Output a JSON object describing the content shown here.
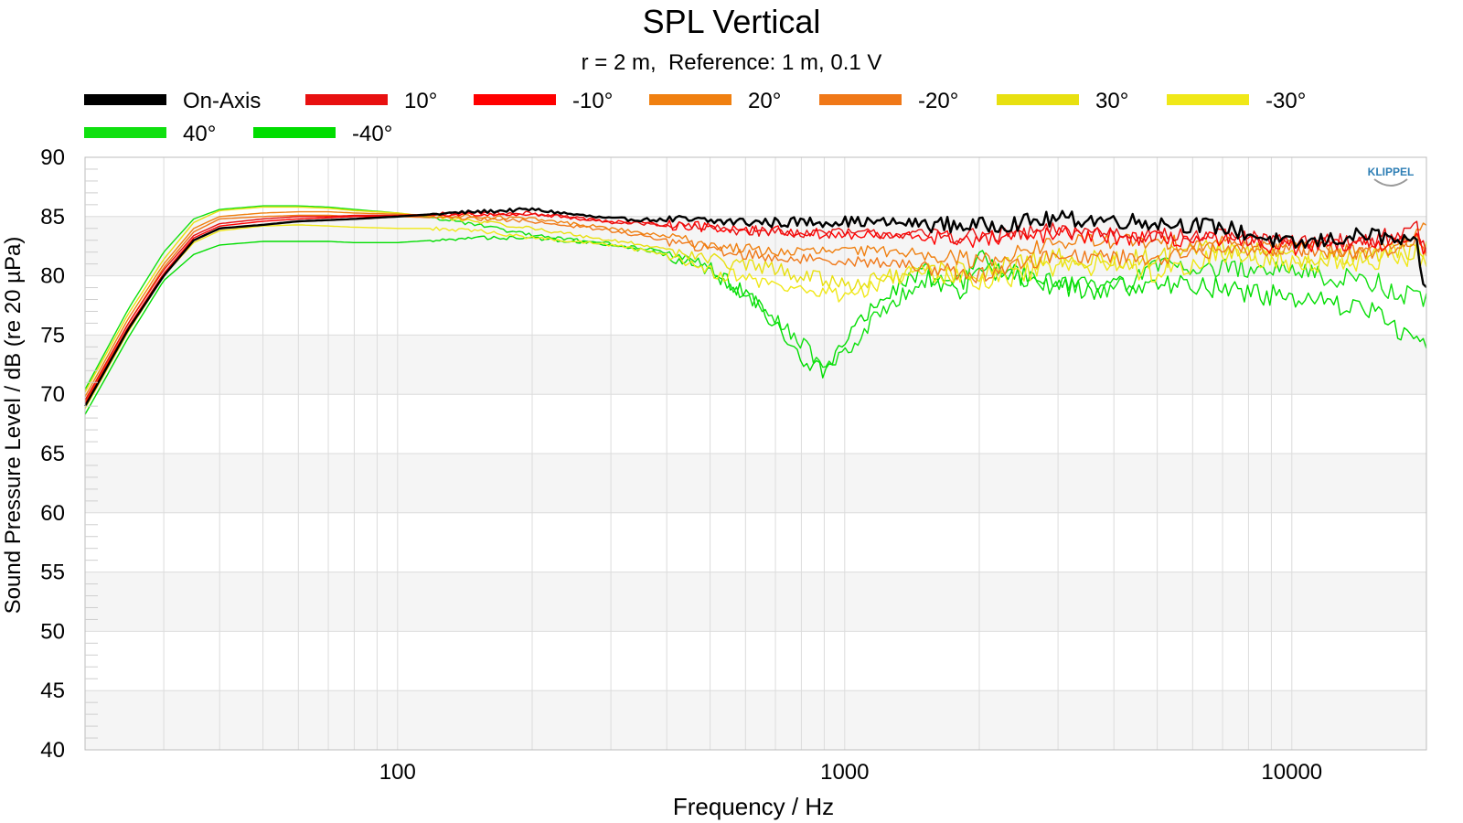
{
  "chart_data": {
    "type": "line",
    "title": "SPL Vertical",
    "subtitle": "r = 2 m,  Reference: 1 m, 0.1 V",
    "xlabel": "Frequency / Hz",
    "ylabel": "Sound Pressure Level / dB (re 20 µPa)",
    "xscale": "log",
    "xlim": [
      20,
      20000
    ],
    "ylim": [
      40,
      90
    ],
    "xticks": [
      {
        "value": 100,
        "label": "100"
      },
      {
        "value": 1000,
        "label": "1000"
      },
      {
        "value": 10000,
        "label": "10000"
      }
    ],
    "yticks": [
      90,
      85,
      80,
      75,
      70,
      65,
      60,
      55,
      50,
      45,
      40
    ],
    "grid": true,
    "legend_position": "top",
    "watermark": "KLIPPEL",
    "series": [
      {
        "name": "On-Axis",
        "color": "#000000",
        "x": [
          20,
          25,
          30,
          35,
          40,
          50,
          60,
          70,
          80,
          100,
          120,
          150,
          200,
          300,
          400,
          500,
          700,
          1000,
          1500,
          2000,
          3000,
          4000,
          5000,
          7000,
          10000,
          15000,
          19000,
          20000
        ],
        "y": [
          69,
          75.5,
          80,
          83,
          84,
          84.3,
          84.6,
          84.7,
          84.8,
          85,
          85.2,
          85.4,
          85.6,
          84.8,
          84.7,
          84.6,
          84.5,
          84.6,
          84.4,
          84.2,
          84.8,
          84.7,
          84.5,
          84.1,
          82.6,
          83.5,
          82.5,
          78.5
        ]
      },
      {
        "name": "10°",
        "color": "#e81010",
        "x": [
          20,
          25,
          30,
          35,
          40,
          50,
          60,
          70,
          80,
          100,
          120,
          150,
          200,
          300,
          400,
          500,
          700,
          1000,
          1500,
          2000,
          3000,
          4000,
          5000,
          7000,
          10000,
          15000,
          19000,
          20000
        ],
        "y": [
          69.5,
          76,
          80.5,
          83.4,
          84.4,
          84.8,
          85,
          85,
          85.1,
          85.1,
          85.2,
          85.3,
          85.3,
          84.5,
          84.3,
          84,
          83.7,
          83.6,
          83.5,
          83.3,
          83.8,
          83.7,
          83.4,
          83.3,
          82.8,
          83,
          84,
          82
        ]
      },
      {
        "name": "-10°",
        "color": "#ff0000",
        "x": [
          20,
          25,
          30,
          35,
          40,
          50,
          60,
          70,
          80,
          100,
          120,
          150,
          200,
          300,
          400,
          500,
          700,
          1000,
          1500,
          2000,
          3000,
          4000,
          5000,
          7000,
          10000,
          15000,
          19000,
          20000
        ],
        "y": [
          69.2,
          75.7,
          80.2,
          83.2,
          84.2,
          84.6,
          84.8,
          84.9,
          85,
          85,
          85.1,
          85.2,
          85.2,
          84.6,
          84.3,
          84.1,
          83.8,
          83.4,
          83.3,
          83,
          83.5,
          83.3,
          83.1,
          83,
          82.4,
          82.7,
          83,
          81.7
        ]
      },
      {
        "name": "20°",
        "color": "#f08010",
        "x": [
          20,
          25,
          30,
          35,
          40,
          50,
          60,
          70,
          80,
          100,
          120,
          150,
          200,
          300,
          400,
          500,
          700,
          1000,
          1500,
          2000,
          3000,
          4000,
          5000,
          7000,
          10000,
          15000,
          19000,
          20000
        ],
        "y": [
          69.8,
          76.4,
          81,
          84,
          85,
          85.3,
          85.4,
          85.4,
          85.3,
          85.2,
          85.1,
          85,
          84.8,
          84,
          83.3,
          82.6,
          82,
          82.1,
          82,
          81.2,
          82.8,
          83,
          82.7,
          82.8,
          82.3,
          82,
          83.3,
          84.2
        ]
      },
      {
        "name": "-20°",
        "color": "#f07818",
        "x": [
          20,
          25,
          30,
          35,
          40,
          50,
          60,
          70,
          80,
          100,
          120,
          150,
          200,
          300,
          400,
          500,
          700,
          1000,
          1500,
          2000,
          3000,
          4000,
          5000,
          7000,
          10000,
          15000,
          19000,
          20000
        ],
        "y": [
          69.3,
          76,
          80.7,
          83.7,
          84.8,
          85,
          85.1,
          85.1,
          85,
          85,
          84.9,
          84.8,
          84.6,
          83.8,
          83,
          82.2,
          81.5,
          81.3,
          80.8,
          80,
          81.8,
          81.6,
          81.5,
          82.2,
          82.4,
          82,
          83,
          82.2
        ]
      },
      {
        "name": "30°",
        "color": "#e8e010",
        "x": [
          20,
          25,
          30,
          35,
          40,
          50,
          60,
          70,
          80,
          100,
          120,
          150,
          200,
          300,
          400,
          500,
          700,
          1000,
          1500,
          2000,
          3000,
          4000,
          5000,
          7000,
          10000,
          15000,
          19000,
          20000
        ],
        "y": [
          70.2,
          76.8,
          81.4,
          84.5,
          85.5,
          85.8,
          85.8,
          85.7,
          85.5,
          85.3,
          85,
          84.6,
          84,
          83,
          82.3,
          81.3,
          80.5,
          79.3,
          80.3,
          80.3,
          81.5,
          81.2,
          81.5,
          82.3,
          81.6,
          81.6,
          82.2,
          82.6
        ]
      },
      {
        "name": "-30°",
        "color": "#f0e818",
        "x": [
          20,
          25,
          30,
          35,
          40,
          50,
          60,
          70,
          80,
          100,
          120,
          150,
          200,
          300,
          400,
          500,
          700,
          1000,
          1500,
          2000,
          3000,
          4000,
          5000,
          7000,
          10000,
          15000,
          19000,
          20000
        ],
        "y": [
          68.8,
          75.3,
          80,
          82.8,
          83.8,
          84.2,
          84.3,
          84.2,
          84.1,
          84,
          84,
          83.8,
          83.2,
          82.6,
          81.8,
          80.5,
          79.2,
          78.3,
          80.6,
          79.2,
          80.8,
          81,
          80.3,
          82,
          81.2,
          81.2,
          81.8,
          81.3
        ]
      },
      {
        "name": "40°",
        "color": "#10e010",
        "x": [
          20,
          25,
          30,
          35,
          40,
          50,
          60,
          70,
          80,
          100,
          120,
          150,
          200,
          300,
          400,
          500,
          600,
          700,
          800,
          900,
          1000,
          1200,
          1500,
          1800,
          2000,
          3000,
          4000,
          5000,
          7000,
          10000,
          15000,
          19000,
          20000
        ],
        "y": [
          70.4,
          77.2,
          82,
          84.8,
          85.6,
          85.9,
          85.9,
          85.8,
          85.6,
          85.3,
          84.9,
          84.3,
          83.4,
          82.7,
          82,
          80.8,
          78.2,
          76.5,
          74.5,
          72.3,
          73.2,
          77,
          79.8,
          79.3,
          80.6,
          79.3,
          79.1,
          80.8,
          80.7,
          80.5,
          79.5,
          78.1,
          78
        ]
      },
      {
        "name": "-40°",
        "color": "#00dd00",
        "x": [
          20,
          25,
          30,
          35,
          40,
          50,
          60,
          70,
          80,
          100,
          120,
          150,
          200,
          300,
          400,
          500,
          600,
          700,
          800,
          900,
          1000,
          1200,
          1500,
          1800,
          2000,
          3000,
          4000,
          5000,
          7000,
          10000,
          15000,
          19000,
          20000
        ],
        "y": [
          68.3,
          74.8,
          79.6,
          81.8,
          82.6,
          82.9,
          82.9,
          82.9,
          82.8,
          82.8,
          83,
          83.2,
          83.2,
          82.6,
          81.8,
          80.3,
          78.5,
          75.8,
          73,
          72,
          74.5,
          78,
          80.4,
          78.2,
          81.5,
          78.8,
          79,
          79.5,
          79,
          78.1,
          77.2,
          74.3,
          74.2
        ]
      }
    ]
  }
}
